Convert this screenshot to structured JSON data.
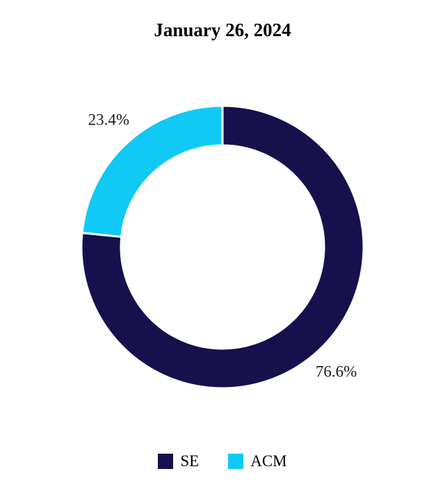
{
  "chart_data": {
    "type": "pie",
    "donut": true,
    "title": "January 26, 2024",
    "categories": [
      "SE",
      "ACM"
    ],
    "values": [
      76.6,
      23.4
    ],
    "labels": [
      "76.6%",
      "23.4%"
    ],
    "colors": [
      "#16104d",
      "#11c9f5"
    ],
    "legend_position": "bottom"
  },
  "legend": [
    {
      "label": "SE",
      "color": "#16104d"
    },
    {
      "label": "ACM",
      "color": "#11c9f5"
    }
  ]
}
